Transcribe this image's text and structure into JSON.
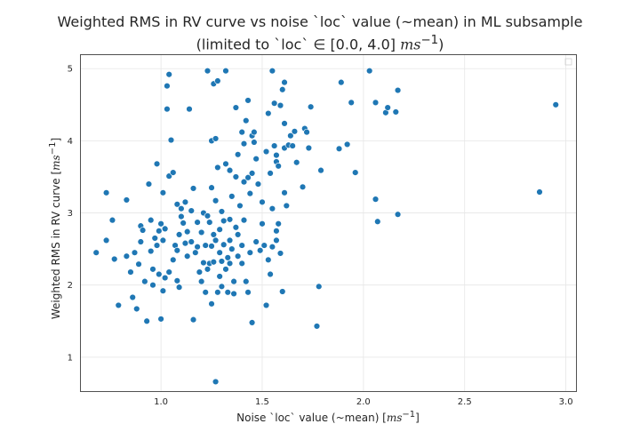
{
  "chart_data": {
    "type": "scatter",
    "title_line1": "Weighted RMS in RV curve vs noise `loc` value (~mean) in ML subsample",
    "title_line2_prefix": "(limited to `loc` ∈ [0.0, 4.0] ",
    "title_line2_unit": "ms",
    "title_line2_sup": "−1",
    "title_line2_suffix": ")",
    "xlabel_prefix": "Noise `loc` value (~mean) [",
    "xlabel_unit": "ms",
    "xlabel_sup": "−1",
    "xlabel_suffix": "]",
    "ylabel_prefix": "Weighted RMS in RV curve [",
    "ylabel_unit": "ms",
    "ylabel_sup": "−1",
    "ylabel_suffix": "]",
    "xlim": [
      0.6,
      3.05
    ],
    "ylim": [
      0.53,
      5.2
    ],
    "xticks": [
      1.0,
      1.5,
      2.0,
      2.5,
      3.0
    ],
    "xtick_labels": [
      "1.0",
      "1.5",
      "2.0",
      "2.5",
      "3.0"
    ],
    "yticks": [
      1,
      2,
      3,
      4,
      5
    ],
    "ytick_labels": [
      "1",
      "2",
      "3",
      "4",
      "5"
    ],
    "grid": true,
    "legend": "top-right (empty)",
    "marker_color": "#1f77b4",
    "points": [
      [
        0.68,
        2.45
      ],
      [
        0.73,
        3.28
      ],
      [
        0.73,
        2.62
      ],
      [
        0.76,
        2.9
      ],
      [
        0.77,
        2.36
      ],
      [
        0.79,
        1.72
      ],
      [
        0.83,
        3.18
      ],
      [
        0.83,
        2.4
      ],
      [
        0.85,
        2.18
      ],
      [
        0.86,
        1.83
      ],
      [
        0.87,
        2.45
      ],
      [
        0.88,
        1.67
      ],
      [
        0.89,
        2.29
      ],
      [
        0.9,
        2.6
      ],
      [
        0.9,
        2.82
      ],
      [
        0.91,
        2.76
      ],
      [
        0.92,
        2.05
      ],
      [
        0.93,
        1.5
      ],
      [
        0.94,
        3.4
      ],
      [
        0.95,
        2.9
      ],
      [
        0.95,
        2.47
      ],
      [
        0.96,
        2.22
      ],
      [
        0.96,
        2.0
      ],
      [
        0.97,
        2.65
      ],
      [
        0.98,
        3.68
      ],
      [
        0.98,
        2.55
      ],
      [
        0.99,
        2.15
      ],
      [
        0.99,
        2.75
      ],
      [
        1.0,
        1.53
      ],
      [
        1.0,
        2.85
      ],
      [
        1.01,
        3.28
      ],
      [
        1.01,
        2.62
      ],
      [
        1.01,
        1.92
      ],
      [
        1.02,
        2.1
      ],
      [
        1.02,
        2.78
      ],
      [
        1.03,
        4.44
      ],
      [
        1.03,
        4.76
      ],
      [
        1.04,
        3.51
      ],
      [
        1.04,
        4.92
      ],
      [
        1.04,
        2.18
      ],
      [
        1.05,
        4.01
      ],
      [
        1.06,
        3.56
      ],
      [
        1.06,
        2.35
      ],
      [
        1.07,
        2.55
      ],
      [
        1.08,
        3.12
      ],
      [
        1.08,
        2.48
      ],
      [
        1.08,
        2.06
      ],
      [
        1.09,
        2.7
      ],
      [
        1.09,
        1.97
      ],
      [
        1.1,
        2.95
      ],
      [
        1.1,
        3.06
      ],
      [
        1.11,
        2.86
      ],
      [
        1.12,
        2.58
      ],
      [
        1.12,
        3.15
      ],
      [
        1.13,
        2.4
      ],
      [
        1.13,
        2.74
      ],
      [
        1.14,
        4.44
      ],
      [
        1.15,
        3.03
      ],
      [
        1.15,
        2.6
      ],
      [
        1.16,
        3.34
      ],
      [
        1.16,
        1.52
      ],
      [
        1.17,
        2.45
      ],
      [
        1.18,
        2.87
      ],
      [
        1.18,
        2.53
      ],
      [
        1.19,
        2.18
      ],
      [
        1.2,
        2.73
      ],
      [
        1.2,
        2.05
      ],
      [
        1.21,
        3.0
      ],
      [
        1.21,
        2.31
      ],
      [
        1.22,
        2.55
      ],
      [
        1.22,
        1.9
      ],
      [
        1.23,
        2.96
      ],
      [
        1.23,
        2.22
      ],
      [
        1.23,
        4.97
      ],
      [
        1.24,
        2.87
      ],
      [
        1.24,
        2.3
      ],
      [
        1.25,
        1.74
      ],
      [
        1.25,
        4.0
      ],
      [
        1.25,
        3.35
      ],
      [
        1.25,
        2.54
      ],
      [
        1.26,
        4.79
      ],
      [
        1.26,
        2.7
      ],
      [
        1.26,
        2.32
      ],
      [
        1.27,
        0.66
      ],
      [
        1.27,
        4.03
      ],
      [
        1.27,
        3.17
      ],
      [
        1.27,
        2.62
      ],
      [
        1.28,
        1.9
      ],
      [
        1.28,
        4.83
      ],
      [
        1.28,
        3.63
      ],
      [
        1.29,
        2.45
      ],
      [
        1.29,
        2.12
      ],
      [
        1.29,
        2.77
      ],
      [
        1.3,
        3.02
      ],
      [
        1.3,
        2.33
      ],
      [
        1.3,
        1.98
      ],
      [
        1.31,
        2.89
      ],
      [
        1.31,
        2.56
      ],
      [
        1.32,
        3.68
      ],
      [
        1.32,
        2.22
      ],
      [
        1.32,
        4.97
      ],
      [
        1.33,
        2.38
      ],
      [
        1.33,
        1.9
      ],
      [
        1.34,
        3.59
      ],
      [
        1.34,
        2.91
      ],
      [
        1.34,
        2.62
      ],
      [
        1.34,
        2.3
      ],
      [
        1.35,
        3.23
      ],
      [
        1.35,
        2.5
      ],
      [
        1.36,
        2.05
      ],
      [
        1.36,
        1.88
      ],
      [
        1.37,
        3.5
      ],
      [
        1.37,
        2.8
      ],
      [
        1.37,
        4.46
      ],
      [
        1.38,
        3.81
      ],
      [
        1.38,
        2.7
      ],
      [
        1.38,
        2.4
      ],
      [
        1.39,
        3.1
      ],
      [
        1.4,
        4.12
      ],
      [
        1.4,
        2.55
      ],
      [
        1.4,
        2.3
      ],
      [
        1.41,
        3.43
      ],
      [
        1.41,
        3.96
      ],
      [
        1.41,
        2.9
      ],
      [
        1.42,
        4.28
      ],
      [
        1.42,
        2.05
      ],
      [
        1.43,
        3.49
      ],
      [
        1.43,
        4.56
      ],
      [
        1.43,
        1.9
      ],
      [
        1.44,
        3.27
      ],
      [
        1.44,
        2.45
      ],
      [
        1.45,
        1.48
      ],
      [
        1.45,
        3.55
      ],
      [
        1.45,
        4.07
      ],
      [
        1.46,
        3.98
      ],
      [
        1.46,
        4.12
      ],
      [
        1.47,
        2.6
      ],
      [
        1.47,
        3.75
      ],
      [
        1.48,
        3.4
      ],
      [
        1.49,
        2.48
      ],
      [
        1.5,
        2.85
      ],
      [
        1.5,
        3.15
      ],
      [
        1.51,
        2.55
      ],
      [
        1.52,
        1.72
      ],
      [
        1.52,
        3.85
      ],
      [
        1.53,
        2.35
      ],
      [
        1.53,
        4.38
      ],
      [
        1.54,
        3.55
      ],
      [
        1.54,
        2.15
      ],
      [
        1.55,
        4.97
      ],
      [
        1.55,
        3.06
      ],
      [
        1.55,
        2.53
      ],
      [
        1.56,
        3.93
      ],
      [
        1.56,
        4.52
      ],
      [
        1.57,
        3.8
      ],
      [
        1.57,
        2.75
      ],
      [
        1.57,
        2.62
      ],
      [
        1.57,
        3.71
      ],
      [
        1.58,
        3.65
      ],
      [
        1.58,
        2.85
      ],
      [
        1.59,
        2.44
      ],
      [
        1.59,
        4.49
      ],
      [
        1.6,
        1.91
      ],
      [
        1.6,
        4.71
      ],
      [
        1.61,
        4.81
      ],
      [
        1.61,
        3.9
      ],
      [
        1.61,
        3.28
      ],
      [
        1.61,
        4.24
      ],
      [
        1.62,
        3.1
      ],
      [
        1.63,
        3.94
      ],
      [
        1.64,
        4.07
      ],
      [
        1.65,
        3.93
      ],
      [
        1.66,
        4.13
      ],
      [
        1.67,
        3.7
      ],
      [
        1.7,
        3.36
      ],
      [
        1.71,
        4.17
      ],
      [
        1.72,
        4.12
      ],
      [
        1.73,
        3.9
      ],
      [
        1.74,
        4.47
      ],
      [
        1.77,
        1.43
      ],
      [
        1.78,
        1.98
      ],
      [
        1.79,
        3.59
      ],
      [
        1.88,
        3.89
      ],
      [
        1.89,
        4.81
      ],
      [
        1.92,
        3.95
      ],
      [
        1.94,
        4.53
      ],
      [
        1.96,
        3.56
      ],
      [
        2.03,
        4.97
      ],
      [
        2.06,
        4.53
      ],
      [
        2.06,
        3.19
      ],
      [
        2.07,
        2.88
      ],
      [
        2.11,
        4.39
      ],
      [
        2.12,
        4.46
      ],
      [
        2.16,
        4.4
      ],
      [
        2.17,
        4.7
      ],
      [
        2.17,
        2.98
      ],
      [
        2.87,
        3.29
      ],
      [
        2.95,
        4.5
      ]
    ]
  }
}
